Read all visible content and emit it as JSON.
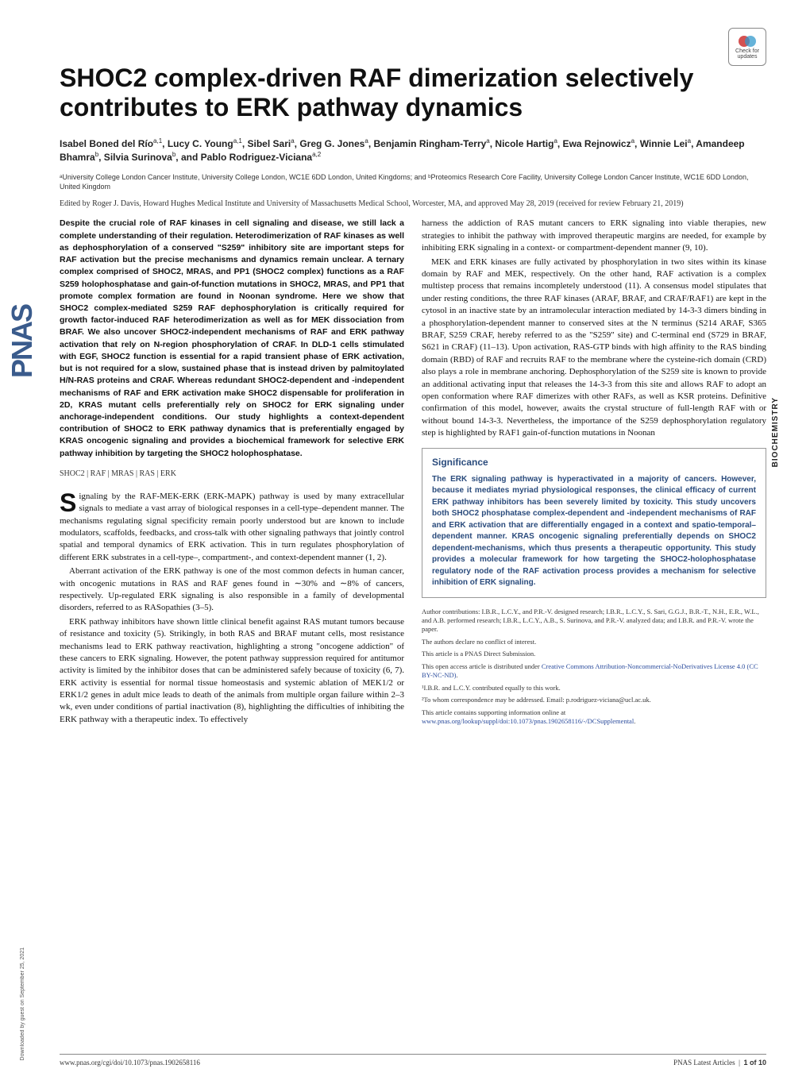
{
  "badge": {
    "line1": "Check for",
    "line2": "updates"
  },
  "sidebar": {
    "logo": "PNAS",
    "download": "Downloaded by guest on September 25, 2021"
  },
  "side_category": "BIOCHEMISTRY",
  "title": "SHOC2 complex-driven RAF dimerization selectively contributes to ERK pathway dynamics",
  "authors_html": "Isabel Boned del Río<sup>a,1</sup>, Lucy C. Young<sup>a,1</sup>, Sibel Sari<sup>a</sup>, Greg G. Jones<sup>a</sup>, Benjamin Ringham-Terry<sup>a</sup>, Nicole Hartig<sup>a</sup>, Ewa Rejnowicz<sup>a</sup>, Winnie Lei<sup>a</sup>, Amandeep Bhamra<sup>b</sup>, Silvia Surinova<sup>b</sup>, and Pablo Rodriguez-Viciana<sup>a,2</sup>",
  "affiliations": "ᵃUniversity College London Cancer Institute, University College London, WC1E 6DD London, United Kingdoms; and ᵇProteomics Research Core Facility, University College London Cancer Institute, WC1E 6DD London, United Kingdom",
  "edited": "Edited by Roger J. Davis, Howard Hughes Medical Institute and University of Massachusetts Medical School, Worcester, MA, and approved May 28, 2019 (received for review February 21, 2019)",
  "abstract": "Despite the crucial role of RAF kinases in cell signaling and disease, we still lack a complete understanding of their regulation. Heterodimerization of RAF kinases as well as dephosphorylation of a conserved \"S259\" inhibitory site are important steps for RAF activation but the precise mechanisms and dynamics remain unclear. A ternary complex comprised of SHOC2, MRAS, and PP1 (SHOC2 complex) functions as a RAF S259 holophosphatase and gain-of-function mutations in SHOC2, MRAS, and PP1 that promote complex formation are found in Noonan syndrome. Here we show that SHOC2 complex-mediated S259 RAF dephosphorylation is critically required for growth factor-induced RAF heterodimerization as well as for MEK dissociation from BRAF. We also uncover SHOC2-independent mechanisms of RAF and ERK pathway activation that rely on N-region phosphorylation of CRAF. In DLD-1 cells stimulated with EGF, SHOC2 function is essential for a rapid transient phase of ERK activation, but is not required for a slow, sustained phase that is instead driven by palmitoylated H/N-RAS proteins and CRAF. Whereas redundant SHOC2-dependent and -independent mechanisms of RAF and ERK activation make SHOC2 dispensable for proliferation in 2D, KRAS mutant cells preferentially rely on SHOC2 for ERK signaling under anchorage-independent conditions. Our study highlights a context-dependent contribution of SHOC2 to ERK pathway dynamics that is preferentially engaged by KRAS oncogenic signaling and provides a biochemical framework for selective ERK pathway inhibition by targeting the SHOC2 holophosphatase.",
  "keywords": "SHOC2 | RAF | MRAS | RAS | ERK",
  "body_left": {
    "p1_first": "S",
    "p1_rest": "ignaling by the RAF-MEK-ERK (ERK-MAPK) pathway is used by many extracellular signals to mediate a vast array of biological responses in a cell-type–dependent manner. The mechanisms regulating signal specificity remain poorly understood but are known to include modulators, scaffolds, feedbacks, and cross-talk with other signaling pathways that jointly control spatial and temporal dynamics of ERK activation. This in turn regulates phosphorylation of different ERK substrates in a cell-type–, compartment-, and context-dependent manner (1, 2).",
    "p2": "Aberrant activation of the ERK pathway is one of the most common defects in human cancer, with oncogenic mutations in RAS and RAF genes found in ∼30% and ∼8% of cancers, respectively. Up-regulated ERK signaling is also responsible in a family of developmental disorders, referred to as RASopathies (3–5).",
    "p3": "ERK pathway inhibitors have shown little clinical benefit against RAS mutant tumors because of resistance and toxicity (5). Strikingly, in both RAS and BRAF mutant cells, most resistance mechanisms lead to ERK pathway reactivation, highlighting a strong \"oncogene addiction\" of these cancers to ERK signaling. However, the potent pathway suppression required for antitumor activity is limited by the inhibitor doses that can be administered safely because of toxicity (6, 7). ERK activity is essential for normal tissue homeostasis and systemic ablation of MEK1/2 or ERK1/2 genes in adult mice leads to death of the animals from multiple organ failure within 2–3 wk, even under conditions of partial inactivation (8), highlighting the difficulties of inhibiting the ERK pathway with a therapeutic index. To effectively"
  },
  "body_right": {
    "p1": "harness the addiction of RAS mutant cancers to ERK signaling into viable therapies, new strategies to inhibit the pathway with improved therapeutic margins are needed, for example by inhibiting ERK signaling in a context- or compartment-dependent manner (9, 10).",
    "p2": "MEK and ERK kinases are fully activated by phosphorylation in two sites within its kinase domain by RAF and MEK, respectively. On the other hand, RAF activation is a complex multistep process that remains incompletely understood (11). A consensus model stipulates that under resting conditions, the three RAF kinases (ARAF, BRAF, and CRAF/RAF1) are kept in the cytosol in an inactive state by an intramolecular interaction mediated by 14-3-3 dimers binding in a phosphorylation-dependent manner to conserved sites at the N terminus (S214 ARAF, S365 BRAF, S259 CRAF, hereby referred to as the \"S259\" site) and C-terminal end (S729 in BRAF, S621 in CRAF) (11–13). Upon activation, RAS-GTP binds with high affinity to the RAS binding domain (RBD) of RAF and recruits RAF to the membrane where the cysteine-rich domain (CRD) also plays a role in membrane anchoring. Dephosphorylation of the S259 site is known to provide an additional activating input that releases the 14-3-3 from this site and allows RAF to adopt an open conformation where RAF dimerizes with other RAFs, as well as KSR proteins. Definitive confirmation of this model, however, awaits the crystal structure of full-length RAF with or without bound 14-3-3. Nevertheless, the importance of the S259 dephosphorylation regulatory step is highlighted by RAF1 gain-of-function mutations in Noonan"
  },
  "significance": {
    "title": "Significance",
    "text": "The ERK signaling pathway is hyperactivated in a majority of cancers. However, because it mediates myriad physiological responses, the clinical efficacy of current ERK pathway inhibitors has been severely limited by toxicity. This study uncovers both SHOC2 phosphatase complex-dependent and -independent mechanisms of RAF and ERK activation that are differentially engaged in a context and spatio-temporal–dependent manner. KRAS oncogenic signaling preferentially depends on SHOC2 dependent-mechanisms, which thus presents a therapeutic opportunity. This study provides a molecular framework for how targeting the SHOC2-holophosphatase regulatory node of the RAF activation process provides a mechanism for selective inhibition of ERK signaling."
  },
  "footnotes": {
    "contrib": "Author contributions: I.B.R., L.C.Y., and P.R.-V. designed research; I.B.R., L.C.Y., S. Sari, G.G.J., B.R.-T., N.H., E.R., W.L., and A.B. performed research; I.B.R., L.C.Y., A.B., S. Surinova, and P.R.-V. analyzed data; and I.B.R. and P.R.-V. wrote the paper.",
    "conflict": "The authors declare no conflict of interest.",
    "direct": "This article is a PNAS Direct Submission.",
    "license_pre": "This open access article is distributed under ",
    "license_link": "Creative Commons Attribution-Noncommercial-NoDerivatives License 4.0 (CC BY-NC-ND)",
    "equal": "¹I.B.R. and L.C.Y. contributed equally to this work.",
    "corr": "²To whom correspondence may be addressed. Email: p.rodriguez-viciana@ucl.ac.uk.",
    "supp_pre": "This article contains supporting information online at ",
    "supp_link": "www.pnas.org/lookup/suppl/doi:10.1073/pnas.1902658116/-/DCSupplemental"
  },
  "footer": {
    "left": "www.pnas.org/cgi/doi/10.1073/pnas.1902658116",
    "right_label": "PNAS Latest Articles",
    "right_page": "1 of 10"
  }
}
